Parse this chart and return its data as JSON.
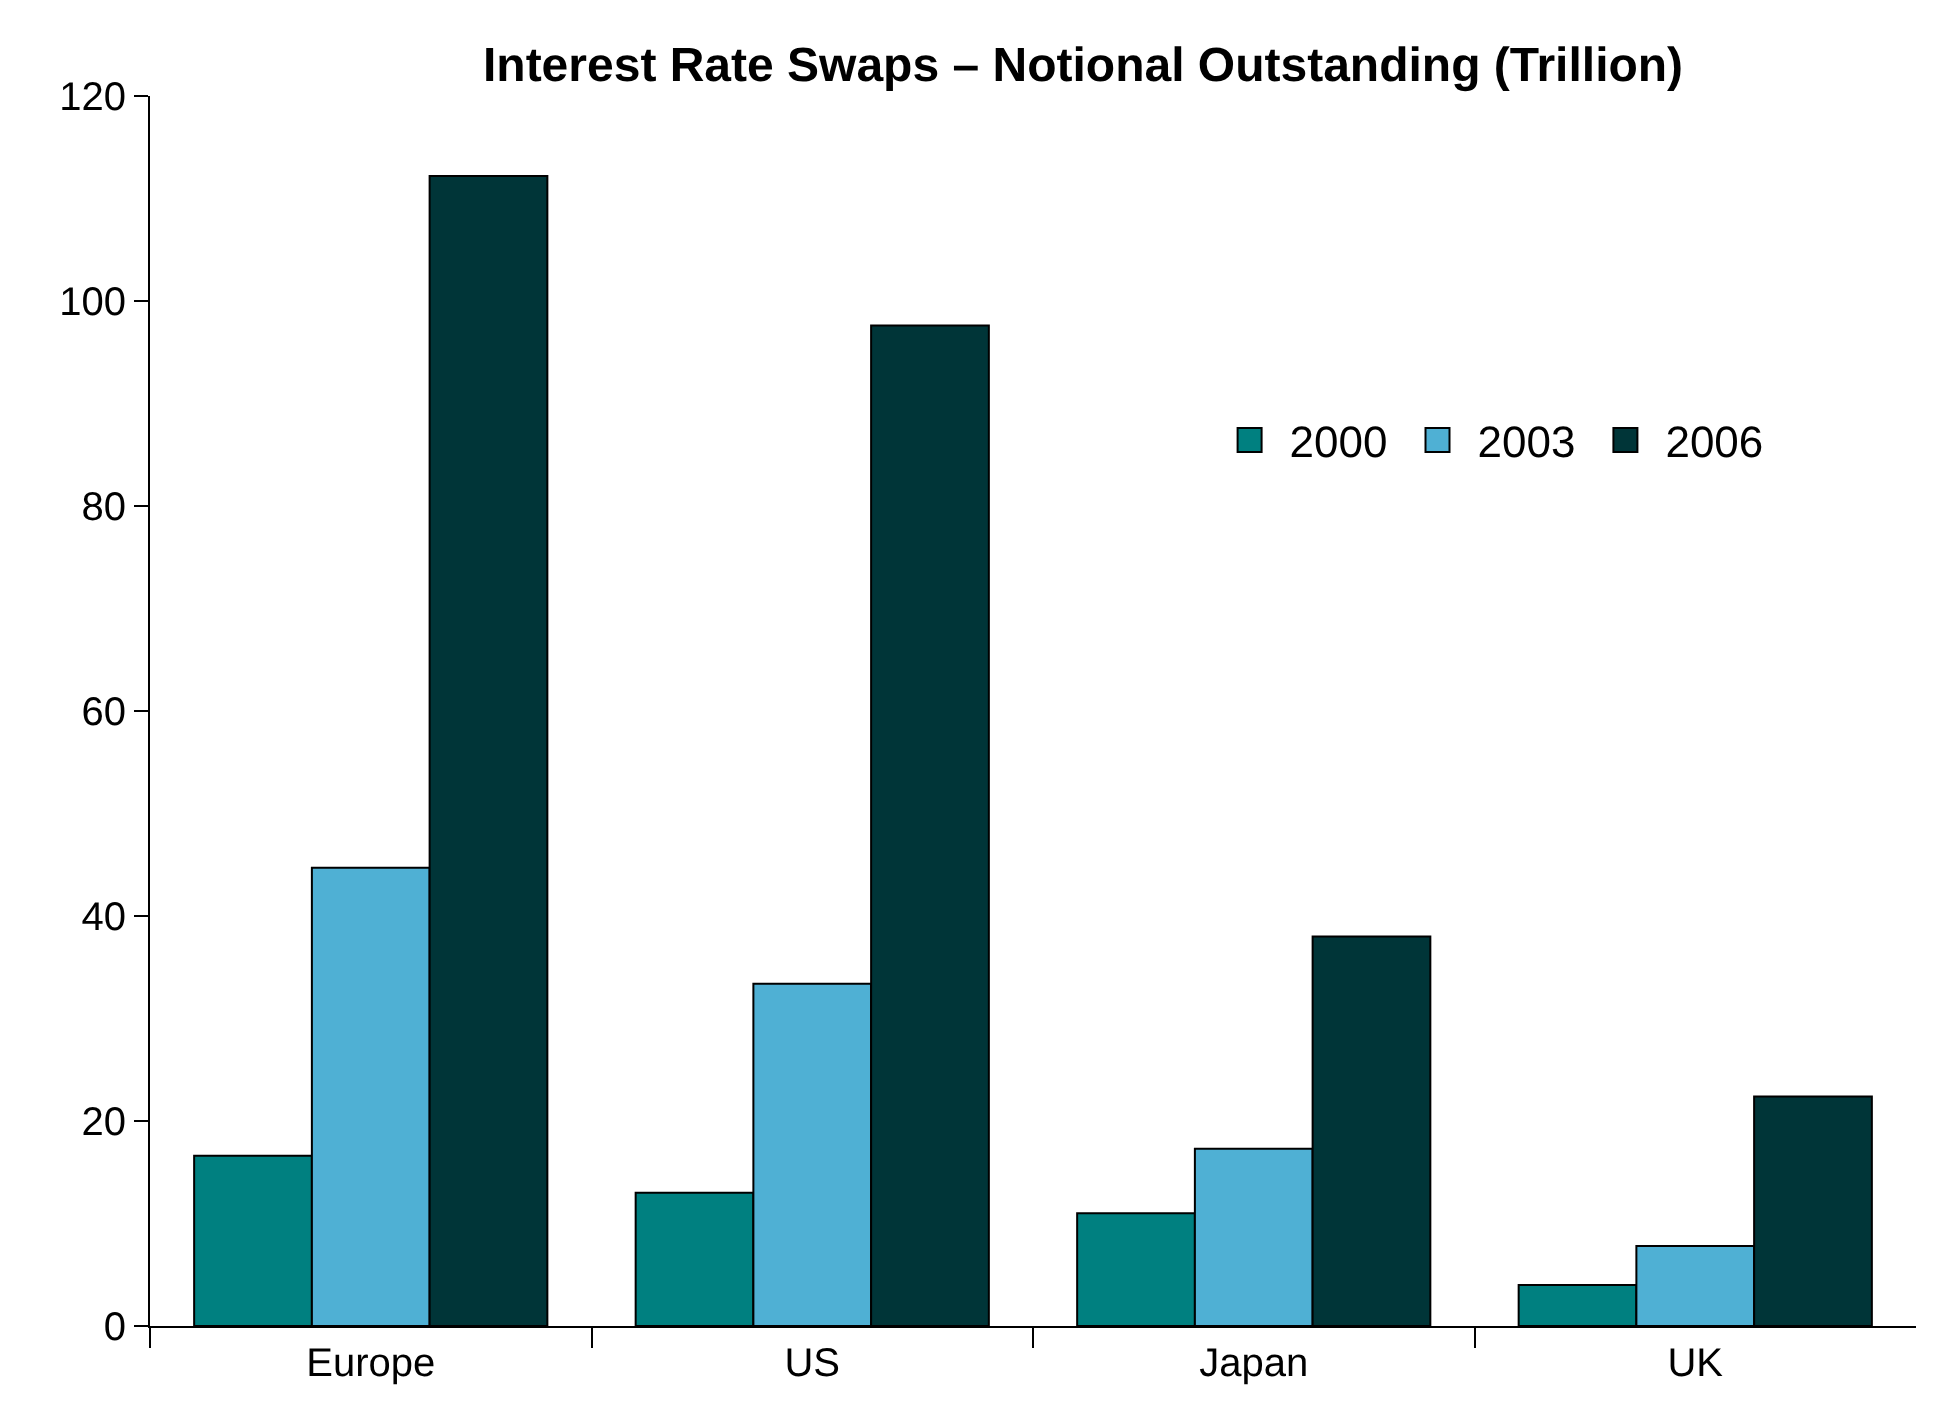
{
  "chart_data": {
    "type": "bar",
    "title": "Interest Rate Swaps – Notional Outstanding (Trillion)",
    "categories": [
      "Europe",
      "US",
      "Japan",
      "UK"
    ],
    "series": [
      {
        "name": "2000",
        "color": "#008080",
        "values": [
          16.6,
          13.0,
          11.0,
          4.0
        ]
      },
      {
        "name": "2003",
        "color": "#4fb0d4",
        "values": [
          44.7,
          33.4,
          17.3,
          7.8
        ]
      },
      {
        "name": "2006",
        "color": "#003538",
        "values": [
          112.2,
          97.6,
          38.0,
          22.4
        ]
      }
    ],
    "ylim": [
      0,
      120
    ],
    "yticks": [
      0,
      20,
      40,
      60,
      80,
      100,
      120
    ],
    "grid": false,
    "legend": "top right"
  }
}
